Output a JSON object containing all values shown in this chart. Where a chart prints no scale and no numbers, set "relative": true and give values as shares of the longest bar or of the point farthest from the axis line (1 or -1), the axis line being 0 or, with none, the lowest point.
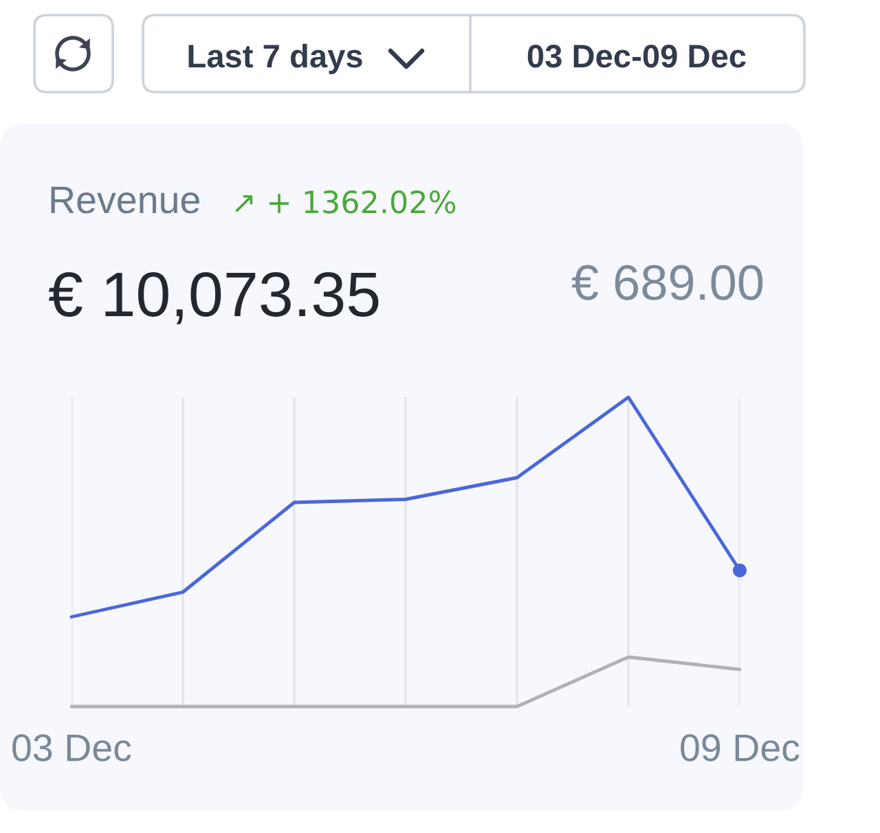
{
  "chart_data": {
    "type": "line",
    "title": "Revenue",
    "relative": true,
    "grid": "x",
    "categories": [
      "03 Dec",
      null,
      null,
      null,
      null,
      null,
      "09 Dec"
    ],
    "series": [
      {
        "color": "#4a67d9",
        "values": [
          0.29,
          0.37,
          0.66,
          0.67,
          0.74,
          1,
          0.44
        ]
      },
      {
        "color": "#aeb1b6",
        "values": [
          0,
          0,
          0,
          0,
          0,
          0.16,
          0.12
        ]
      },
      {
        "type": "scatter",
        "color": "#4a67d9",
        "x": [
          "09 Dec"
        ],
        "values": [
          0.44
        ]
      }
    ],
    "annotations": [
      "Last 7 days",
      "03 Dec-09 Dec",
      "↗ + 1362.02%",
      "€ 10,073.35",
      "€ 689.00"
    ]
  }
}
